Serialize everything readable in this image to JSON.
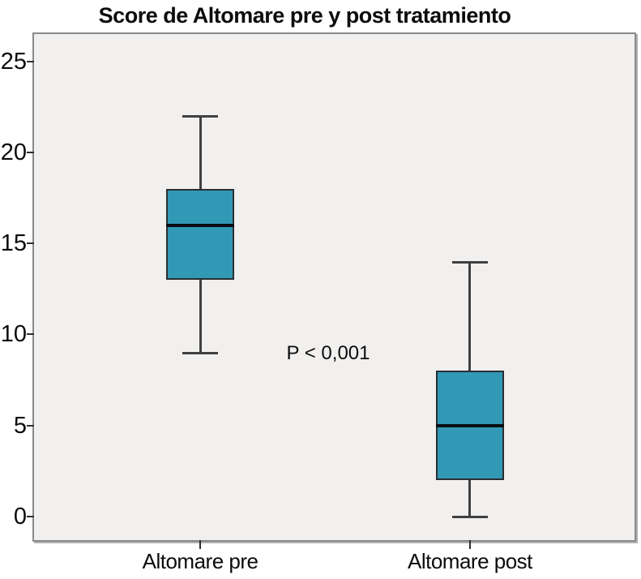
{
  "chart_data": {
    "type": "boxplot",
    "title": "Score de Altomare pre y post tratamiento",
    "categories": [
      "Altomare pre",
      "Altomare post"
    ],
    "series": [
      {
        "name": "Altomare pre",
        "whisker_low": 9,
        "q1": 13,
        "median": 16,
        "q3": 18,
        "whisker_high": 22
      },
      {
        "name": "Altomare post",
        "whisker_low": 0,
        "q1": 2,
        "median": 5,
        "q3": 8,
        "whisker_high": 14
      }
    ],
    "yticks": [
      0,
      5,
      10,
      15,
      20,
      25
    ],
    "ylim": [
      -1.3,
      26.5
    ],
    "xlabel": "",
    "ylabel": "",
    "grid": false,
    "legend_position": "none",
    "annotation": {
      "text": "P < 0,001"
    },
    "colors": {
      "box_fill": "#3199b5",
      "box_border": "#2b2e33",
      "median_line": "#0a0e12",
      "whisker": "#404040",
      "tick": "#2e2e2e",
      "plot_background": "#f1f0ef",
      "frame_border": "#8a8a8a",
      "page_background": "#ffffff",
      "text": "#0c0c0c"
    }
  }
}
